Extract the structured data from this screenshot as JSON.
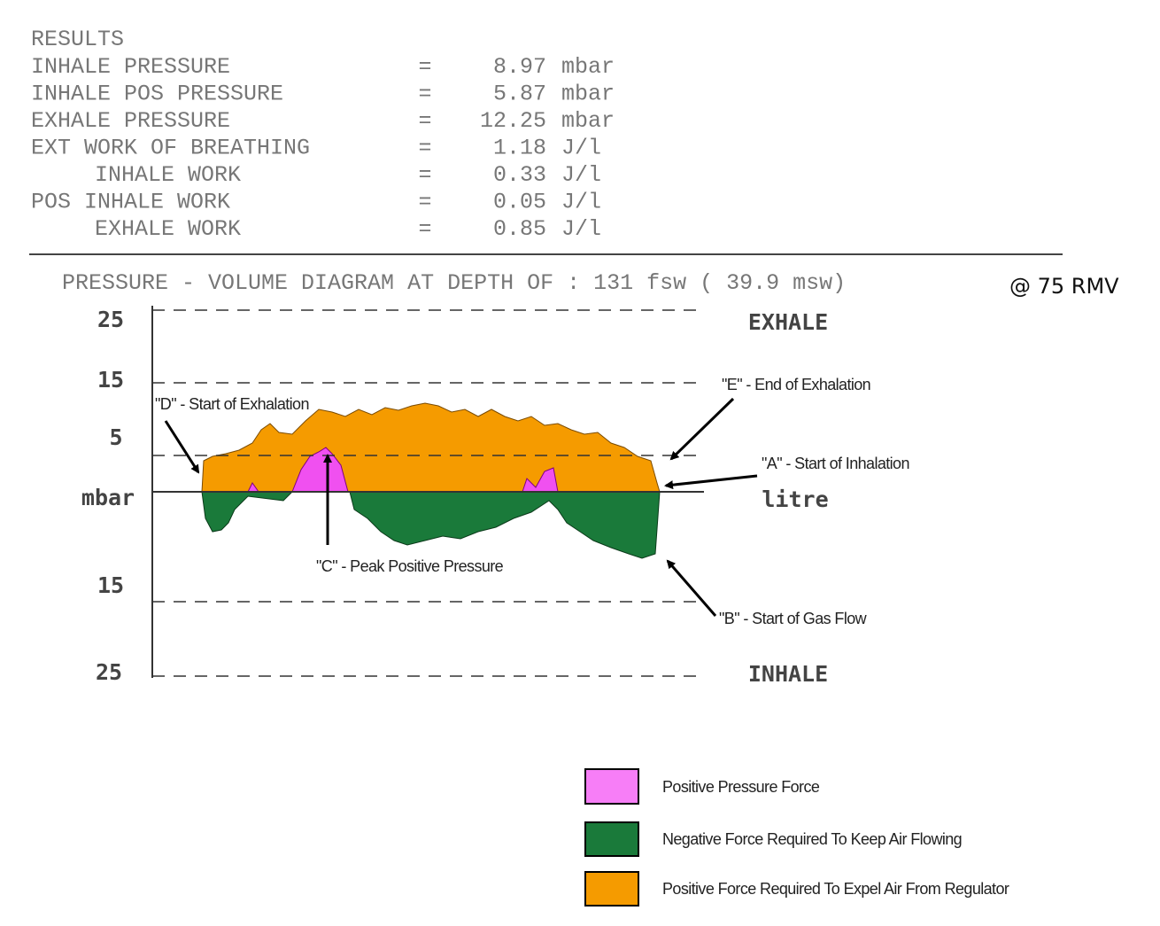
{
  "results": {
    "heading": "RESULTS",
    "rows": [
      {
        "label": "INHALE PRESSURE",
        "sep": "=",
        "value": "8.97",
        "unit": "mbar"
      },
      {
        "label": "INHALE POS PRESSURE",
        "sep": "=",
        "value": "5.87",
        "unit": "mbar"
      },
      {
        "label": "EXHALE PRESSURE",
        "sep": "=",
        "value": "12.25",
        "unit": "mbar"
      },
      {
        "label": "EXT WORK OF BREATHING",
        "sep": "=",
        "value": "1.18",
        "unit": "J/l"
      },
      {
        "label": "INHALE WORK",
        "sep": "=",
        "value": "0.33",
        "unit": "J/l"
      },
      {
        "label": "POS INHALE WORK",
        "sep": "=",
        "value": "0.05",
        "unit": "J/l"
      },
      {
        "label": "EXHALE WORK",
        "sep": "=",
        "value": "0.85",
        "unit": "J/l"
      }
    ]
  },
  "diagram": {
    "title": "PRESSURE - VOLUME DIAGRAM AT DEPTH OF : 131 fsw ( 39.9 msw)",
    "title_suffix": "@ 75 RMV",
    "y_labels": [
      "25",
      "15",
      "5",
      "mbar",
      "15",
      "25"
    ],
    "side_labels": {
      "top": "EXHALE",
      "middle": "litre",
      "bottom": "INHALE"
    },
    "annotations": {
      "D": "\"D\" - Start of Exhalation",
      "E": "\"E\" - End of Exhalation",
      "A": "\"A\" - Start of Inhalation",
      "C": "\"C\" - Peak Positive Pressure",
      "B": "\"B\" - Start of Gas Flow"
    }
  },
  "legend": [
    "Positive Pressure Force",
    "Negative Force Required To Keep Air Flowing",
    "Positive Force Required To Expel Air From Regulator"
  ]
}
